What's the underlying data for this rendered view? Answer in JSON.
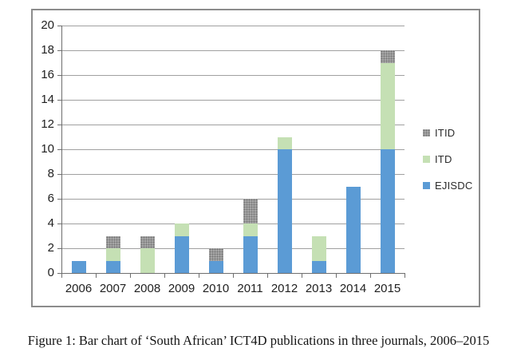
{
  "caption": "Figure 1: Bar chart of ‘South African’ ICT4D publications in three journals, 2006–2015",
  "colors": {
    "ejisdc_blue": "#5b9bd5",
    "itd_green": "#c5e0b4",
    "itid_gray": "#a6a6a6",
    "itid_dot": "#767676",
    "gridline": "#a0a0a0",
    "axis": "#6e6e6e",
    "frame_border": "#8c8c8c"
  },
  "legend": {
    "items": [
      {
        "label": "ITID",
        "series": "ITID"
      },
      {
        "label": "ITD",
        "series": "ITD"
      },
      {
        "label": "EJISDC",
        "series": "EJISDC"
      }
    ]
  },
  "chart_data": {
    "type": "bar",
    "stacked": true,
    "title": "",
    "xlabel": "",
    "ylabel": "",
    "grid": "horizontal",
    "legend_position": "right",
    "ylim": [
      0,
      20
    ],
    "ytick_step": 2,
    "yticks": [
      0,
      2,
      4,
      6,
      8,
      10,
      12,
      14,
      16,
      18,
      20
    ],
    "categories": [
      "2006",
      "2007",
      "2008",
      "2009",
      "2010",
      "2011",
      "2012",
      "2013",
      "2014",
      "2015"
    ],
    "series": [
      {
        "name": "EJISDC",
        "color": "#5b9bd5",
        "pattern": "solid",
        "values": [
          1,
          1,
          0,
          3,
          1,
          3,
          10,
          1,
          7,
          10
        ]
      },
      {
        "name": "ITD",
        "color": "#c5e0b4",
        "pattern": "solid",
        "values": [
          0,
          1,
          2,
          1,
          0,
          1,
          1,
          2,
          0,
          7
        ]
      },
      {
        "name": "ITID",
        "color": "#a6a6a6",
        "pattern": "dotted",
        "values": [
          0,
          1,
          1,
          0,
          1,
          2,
          0,
          0,
          0,
          1
        ]
      }
    ],
    "totals": [
      1,
      3,
      3,
      4,
      2,
      6,
      11,
      3,
      7,
      18
    ]
  }
}
